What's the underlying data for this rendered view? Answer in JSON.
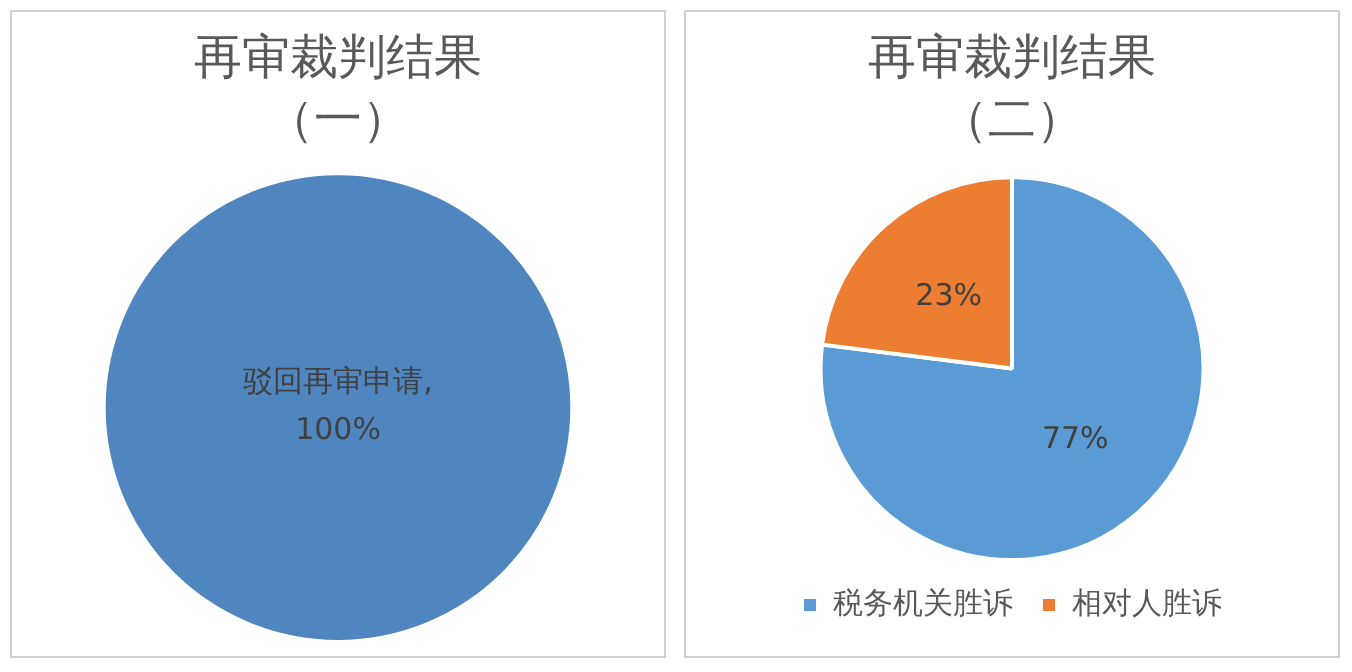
{
  "chart_data": [
    {
      "type": "pie",
      "title": "再审裁判结果",
      "subtitle": "（一）",
      "categories": [
        "驳回再审申请"
      ],
      "values": [
        100
      ],
      "colors": [
        "#4f86c0"
      ],
      "value_labels": [
        ",\n100%"
      ],
      "legend": false
    },
    {
      "type": "pie",
      "title": "再审裁判结果",
      "subtitle": "（二）",
      "categories": [
        "税务机关胜诉",
        "相对人胜诉"
      ],
      "values": [
        77,
        23
      ],
      "colors": [
        "#5b9bd5",
        "#ed7d31"
      ],
      "value_labels": [
        "77%",
        "23%"
      ],
      "legend": "bottom"
    }
  ]
}
